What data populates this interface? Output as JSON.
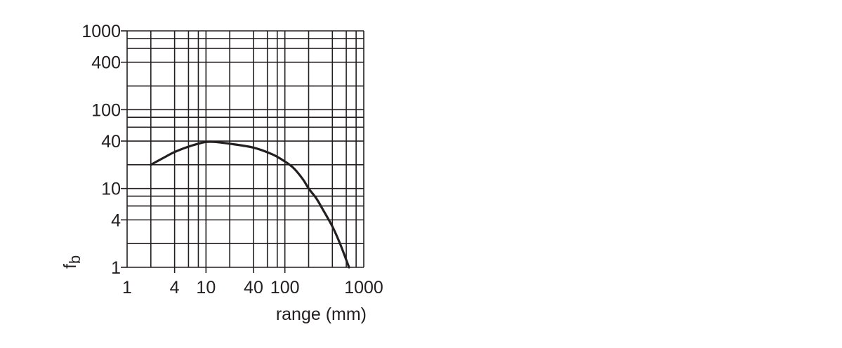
{
  "chart_data": {
    "type": "line",
    "title": "",
    "xlabel": "range (mm)",
    "ylabel": "f_b",
    "ylabel_main": "f",
    "ylabel_sub": "b",
    "xscale": "log",
    "yscale": "log",
    "xlim": [
      1,
      1000
    ],
    "ylim": [
      1,
      1000
    ],
    "grid": true,
    "x_tick_labels": [
      "1",
      "4",
      "10",
      "40",
      "100",
      "1000"
    ],
    "x_tick_values": [
      1,
      4,
      10,
      40,
      100,
      1000
    ],
    "y_tick_labels": [
      "1000",
      "400",
      "100",
      "40",
      "10",
      "4",
      "1"
    ],
    "y_tick_values": [
      1000,
      400,
      100,
      40,
      10,
      4,
      1
    ],
    "x_grid_values": [
      1,
      2,
      4,
      6,
      8,
      10,
      20,
      40,
      60,
      80,
      100,
      200,
      400,
      600,
      800,
      1000
    ],
    "y_grid_values": [
      1,
      2,
      4,
      6,
      8,
      10,
      20,
      40,
      60,
      80,
      100,
      200,
      400,
      600,
      800,
      1000
    ],
    "series": [
      {
        "name": "f_b",
        "color": "#231f20",
        "x": [
          2,
          3,
          4,
          6,
          8,
          10,
          13,
          20,
          40,
          70,
          100,
          130,
          170,
          200,
          250,
          300,
          400,
          500,
          650
        ],
        "y": [
          20,
          25,
          29,
          34,
          37,
          39,
          39,
          37,
          33,
          27,
          22,
          18,
          13,
          10,
          7.5,
          5.5,
          3.3,
          2.0,
          1.0
        ]
      }
    ]
  }
}
